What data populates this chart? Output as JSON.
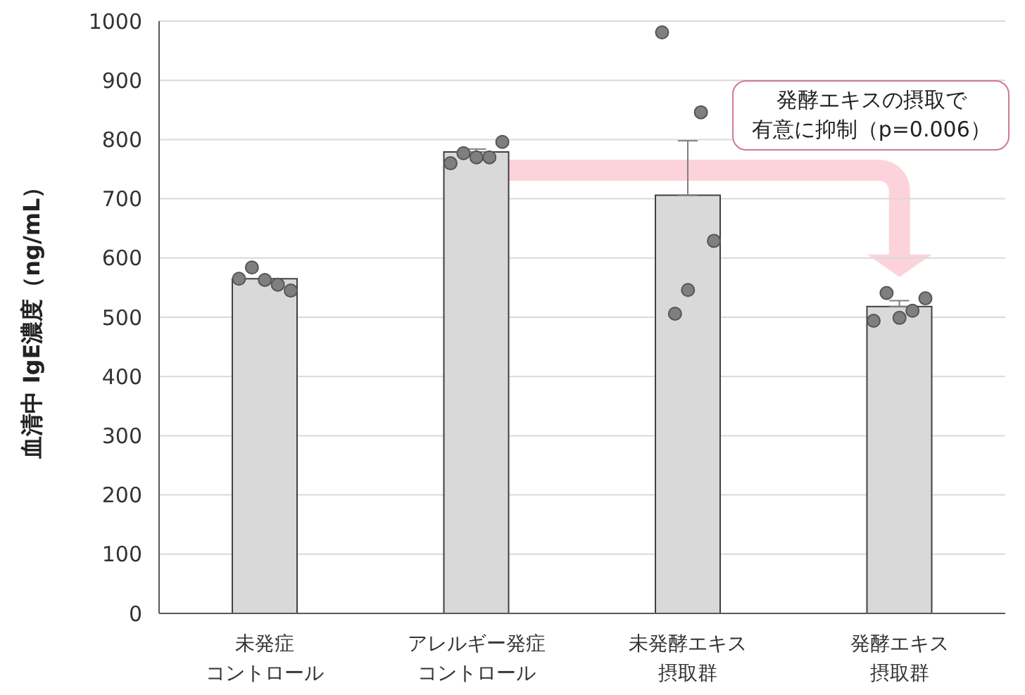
{
  "chart_data": {
    "type": "bar",
    "ylabel": "血清中 IgE濃度（ng/mL）",
    "categories": [
      "未発症コントロール",
      "アレルギー発症コントロール",
      "未発酵エキス摂取群",
      "発酵エキス摂取群"
    ],
    "series": [
      {
        "color": "#d9d9d9",
        "values": [
          565,
          779,
          706,
          518
        ],
        "errors": [
          null,
          [
            779,
            784
          ],
          [
            706,
            798
          ],
          [
            518,
            528
          ]
        ]
      },
      {
        "type": "scatter",
        "color": "#7f7f7f",
        "x": [
          "未発症コントロール",
          "未発症コントロール",
          "未発症コントロール",
          "未発症コントロール",
          "未発症コントロール",
          "アレルギー発症コントロール",
          "アレルギー発症コントロール",
          "アレルギー発症コントロール",
          "アレルギー発症コントロール",
          "アレルギー発症コントロール",
          "未発酵エキス摂取群",
          "未発酵エキス摂取群",
          "未発酵エキス摂取群",
          "未発酵エキス摂取群",
          "未発酵エキス摂取群",
          "発酵エキス摂取群",
          "発酵エキス摂取群",
          "発酵エキス摂取群",
          "発酵エキス摂取群",
          "発酵エキス摂取群"
        ],
        "values": [
          565,
          584,
          563,
          555,
          545,
          760,
          777,
          770,
          770,
          796,
          981,
          506,
          546,
          846,
          629,
          494,
          541,
          499,
          511,
          532
        ]
      }
    ],
    "ylim": [
      0,
      1000
    ],
    "yticks": [
      0,
      100,
      200,
      300,
      400,
      500,
      600,
      700,
      800,
      900,
      1000
    ],
    "grid": "y",
    "marker": "circle",
    "annotations": [
      "発酵エキスの摂取で",
      "有意に抑制（p=0.006）"
    ]
  }
}
